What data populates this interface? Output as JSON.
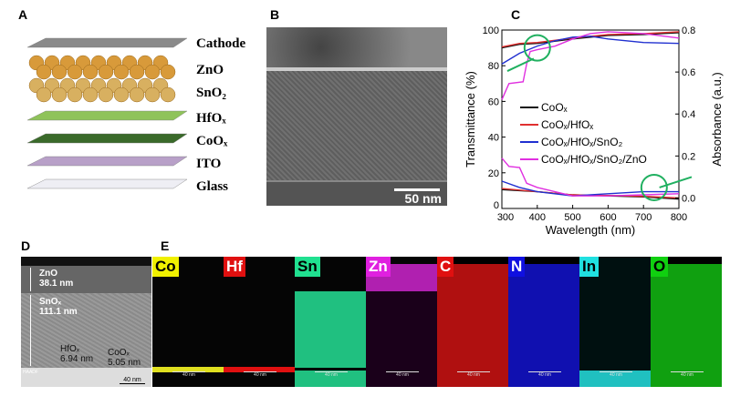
{
  "panels": {
    "a": "A",
    "b": "B",
    "c": "C",
    "d": "D",
    "e": "E"
  },
  "stack": {
    "layers": [
      {
        "label": "Cathode",
        "color": "#8a8a8a"
      },
      {
        "label": "ZnO",
        "color": "#d89a3a"
      },
      {
        "label": "SnO₂",
        "color": "#d8b060"
      },
      {
        "label": "HfOₓ",
        "color": "#8fc35a"
      },
      {
        "label": "CoOₓ",
        "color": "#3a6a2a"
      },
      {
        "label": "ITO",
        "color": "#b8a0c8"
      },
      {
        "label": "Glass",
        "color": "#eeeef4"
      }
    ]
  },
  "tem_b": {
    "scale_bar": "50 nm"
  },
  "chart_data": {
    "type": "line",
    "xlabel": "Wavelength (nm)",
    "ylabel": "Transmittance (%)",
    "y2label": "Absorbance (a.u.)",
    "xlim": [
      300,
      800
    ],
    "ylim": [
      0,
      100
    ],
    "y2lim": [
      -0.05,
      0.8
    ],
    "xticks": [
      300,
      400,
      500,
      600,
      700,
      800
    ],
    "yticks": [
      0,
      20,
      40,
      60,
      80,
      100
    ],
    "y2ticks": [
      "0.0",
      "0.2",
      "0.4",
      "0.6",
      "0.8"
    ],
    "legend_position": "center-right",
    "series": [
      {
        "name": "CoOₓ",
        "color": "#111111",
        "transmittance": [
          [
            300,
            90
          ],
          [
            350,
            92
          ],
          [
            400,
            92.5
          ],
          [
            500,
            95
          ],
          [
            600,
            97
          ],
          [
            700,
            97.5
          ],
          [
            800,
            98.5
          ]
        ],
        "absorbance": [
          [
            300,
            0.04
          ],
          [
            400,
            0.03
          ],
          [
            500,
            0.015
          ],
          [
            600,
            0.01
          ],
          [
            700,
            0.005
          ],
          [
            800,
            -0.005
          ]
        ]
      },
      {
        "name": "CoOₓ/HfOₓ",
        "color": "#e03030",
        "transmittance": [
          [
            300,
            90.5
          ],
          [
            350,
            92.5
          ],
          [
            400,
            93
          ],
          [
            500,
            95.5
          ],
          [
            600,
            97.5
          ],
          [
            700,
            98
          ],
          [
            800,
            99
          ]
        ],
        "absorbance": [
          [
            300,
            0.045
          ],
          [
            400,
            0.03
          ],
          [
            500,
            0.015
          ],
          [
            600,
            0.012
          ],
          [
            700,
            0.008
          ],
          [
            800,
            0.0
          ]
        ]
      },
      {
        "name": "CoOₓ/HfOₓ/SnO₂",
        "color": "#2030d0",
        "transmittance": [
          [
            300,
            81
          ],
          [
            350,
            87
          ],
          [
            400,
            91
          ],
          [
            450,
            94
          ],
          [
            500,
            96
          ],
          [
            550,
            96.5
          ],
          [
            600,
            95
          ],
          [
            700,
            93
          ],
          [
            800,
            92.5
          ]
        ],
        "absorbance": [
          [
            300,
            0.08
          ],
          [
            350,
            0.05
          ],
          [
            400,
            0.03
          ],
          [
            500,
            0.01
          ],
          [
            600,
            0.02
          ],
          [
            700,
            0.03
          ],
          [
            800,
            0.03
          ]
        ]
      },
      {
        "name": "CoOₓ/HfOₓ/SnO₂/ZnO",
        "color": "#e030e0",
        "transmittance": [
          [
            300,
            61
          ],
          [
            320,
            70
          ],
          [
            360,
            71
          ],
          [
            370,
            81
          ],
          [
            380,
            88
          ],
          [
            400,
            89
          ],
          [
            450,
            91
          ],
          [
            500,
            95
          ],
          [
            550,
            98
          ],
          [
            600,
            99
          ],
          [
            700,
            98
          ],
          [
            800,
            95.5
          ]
        ],
        "absorbance": [
          [
            300,
            0.19
          ],
          [
            320,
            0.15
          ],
          [
            350,
            0.145
          ],
          [
            370,
            0.07
          ],
          [
            400,
            0.05
          ],
          [
            500,
            0.01
          ],
          [
            600,
            0.01
          ],
          [
            700,
            0.015
          ],
          [
            800,
            0.02
          ]
        ]
      }
    ]
  },
  "haadf": {
    "tag": "HAADF",
    "zno": "ZnO",
    "zno_t": "38.1 nm",
    "sno": "SnOₓ",
    "sno_t": "111.1 nm",
    "hfo": "HfOₓ",
    "hfo_t": "6.94 nm",
    "coo": "CoOₓ",
    "coo_t": "5.05 nm",
    "scale_bar": "40 nm"
  },
  "maps": [
    {
      "el": "Co",
      "tag": "#f0f000",
      "color": "#e0e020",
      "mode": "line"
    },
    {
      "el": "Hf",
      "tag": "#e01010",
      "color": "#e01010",
      "mode": "line"
    },
    {
      "el": "Sn",
      "tag": "#20e090",
      "color": "#20c080",
      "mode": "snlayer"
    },
    {
      "el": "Zn",
      "tag": "#e020e0",
      "color": "#b020b0",
      "mode": "top"
    },
    {
      "el": "C",
      "tag": "#e01010",
      "color": "#b01010",
      "mode": "all"
    },
    {
      "el": "N",
      "tag": "#1010e0",
      "color": "#1010b0",
      "mode": "all"
    },
    {
      "el": "In",
      "tag": "#20e0e0",
      "color": "#20c0c0",
      "mode": "bottom"
    },
    {
      "el": "O",
      "tag": "#10d010",
      "color": "#10a010",
      "mode": "all"
    }
  ],
  "map_scale": "40 nm"
}
